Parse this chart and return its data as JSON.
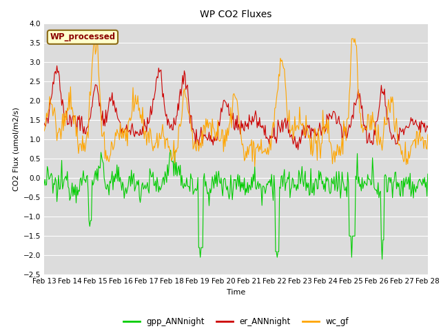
{
  "title": "WP CO2 Fluxes",
  "xlabel": "Time",
  "ylabel": "CO2 Flux (umol/m2/s)",
  "ylim": [
    -2.5,
    4.0
  ],
  "yticks": [
    -2.5,
    -2.0,
    -1.5,
    -1.0,
    -0.5,
    0.0,
    0.5,
    1.0,
    1.5,
    2.0,
    2.5,
    3.0,
    3.5,
    4.0
  ],
  "xtick_labels": [
    "Feb 13",
    "Feb 14",
    "Feb 15",
    "Feb 16",
    "Feb 17",
    "Feb 18",
    "Feb 19",
    "Feb 20",
    "Feb 21",
    "Feb 22",
    "Feb 23",
    "Feb 24",
    "Feb 25",
    "Feb 26",
    "Feb 27",
    "Feb 28"
  ],
  "n_points": 480,
  "color_green": "#00CC00",
  "color_red": "#CC0000",
  "color_orange": "#FFA500",
  "plot_bg_color": "#DCDCDC",
  "fig_bg_color": "#FFFFFF",
  "legend_label": "WP_processed",
  "legend_text_color": "#8B0000",
  "legend_box_facecolor": "#FFFFCC",
  "legend_box_edgecolor": "#8B6914",
  "line_labels": [
    "gpp_ANNnight",
    "er_ANNnight",
    "wc_gf"
  ],
  "linewidth": 0.8,
  "title_fontsize": 10,
  "axis_label_fontsize": 8,
  "tick_fontsize": 7.5
}
